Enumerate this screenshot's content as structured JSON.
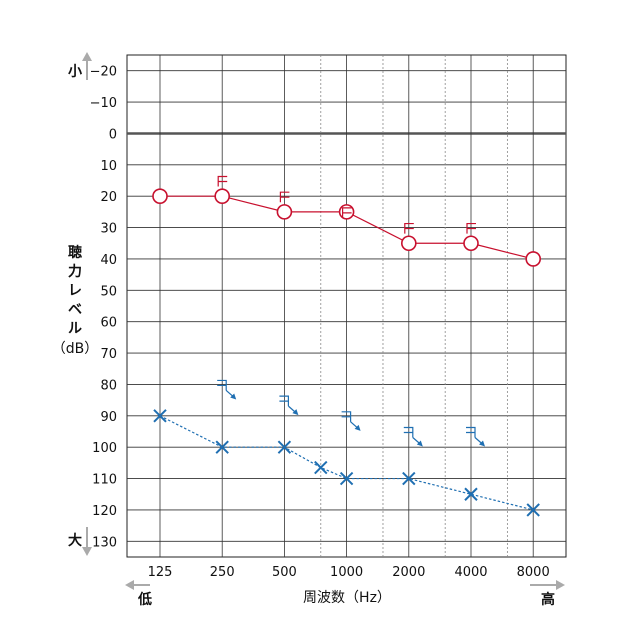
{
  "chart_data": {
    "type": "line",
    "x_ticks": [
      "125",
      "250",
      "500",
      "1000",
      "2000",
      "4000",
      "8000"
    ],
    "x_label": "周波数（Hz）",
    "x_low_label": "低",
    "x_high_label": "高",
    "y_label_lines": [
      "聴",
      "力",
      "レ",
      "ベ",
      "ル",
      "（dB）"
    ],
    "y_small_label": "小",
    "y_large_label": "大",
    "y_ticks": [
      "−20",
      "−10",
      "0",
      "10",
      "20",
      "30",
      "40",
      "50",
      "60",
      "70",
      "80",
      "90",
      "100",
      "110",
      "120",
      "130"
    ],
    "ylim": [
      -25,
      135
    ],
    "y_reversed": true,
    "x_scale": "log2",
    "grid": true,
    "series": [
      {
        "marker": "circle",
        "line": "solid",
        "color": "#c8102e",
        "x": [
          125,
          250,
          500,
          1000,
          2000,
          4000,
          8000
        ],
        "y": [
          20,
          20,
          25,
          25,
          35,
          35,
          40
        ]
      },
      {
        "marker": "cross",
        "line": "dotted",
        "color": "#1f6fb2",
        "x": [
          125,
          250,
          500,
          750,
          1000,
          2000,
          4000,
          8000
        ],
        "y": [
          90,
          100,
          100,
          106.5,
          110,
          110,
          115,
          120
        ]
      },
      {
        "marker": "bracket-open-right",
        "line": "none",
        "color": "#c8102e",
        "x": [
          250,
          500,
          1000,
          2000,
          4000
        ],
        "y": [
          15,
          20,
          25,
          30,
          30
        ]
      },
      {
        "marker": "bracket-open-left-arrow",
        "line": "none",
        "color": "#1f6fb2",
        "x": [
          250,
          500,
          1000,
          2000,
          4000
        ],
        "y": [
          80,
          85,
          90,
          95,
          95
        ]
      }
    ]
  }
}
